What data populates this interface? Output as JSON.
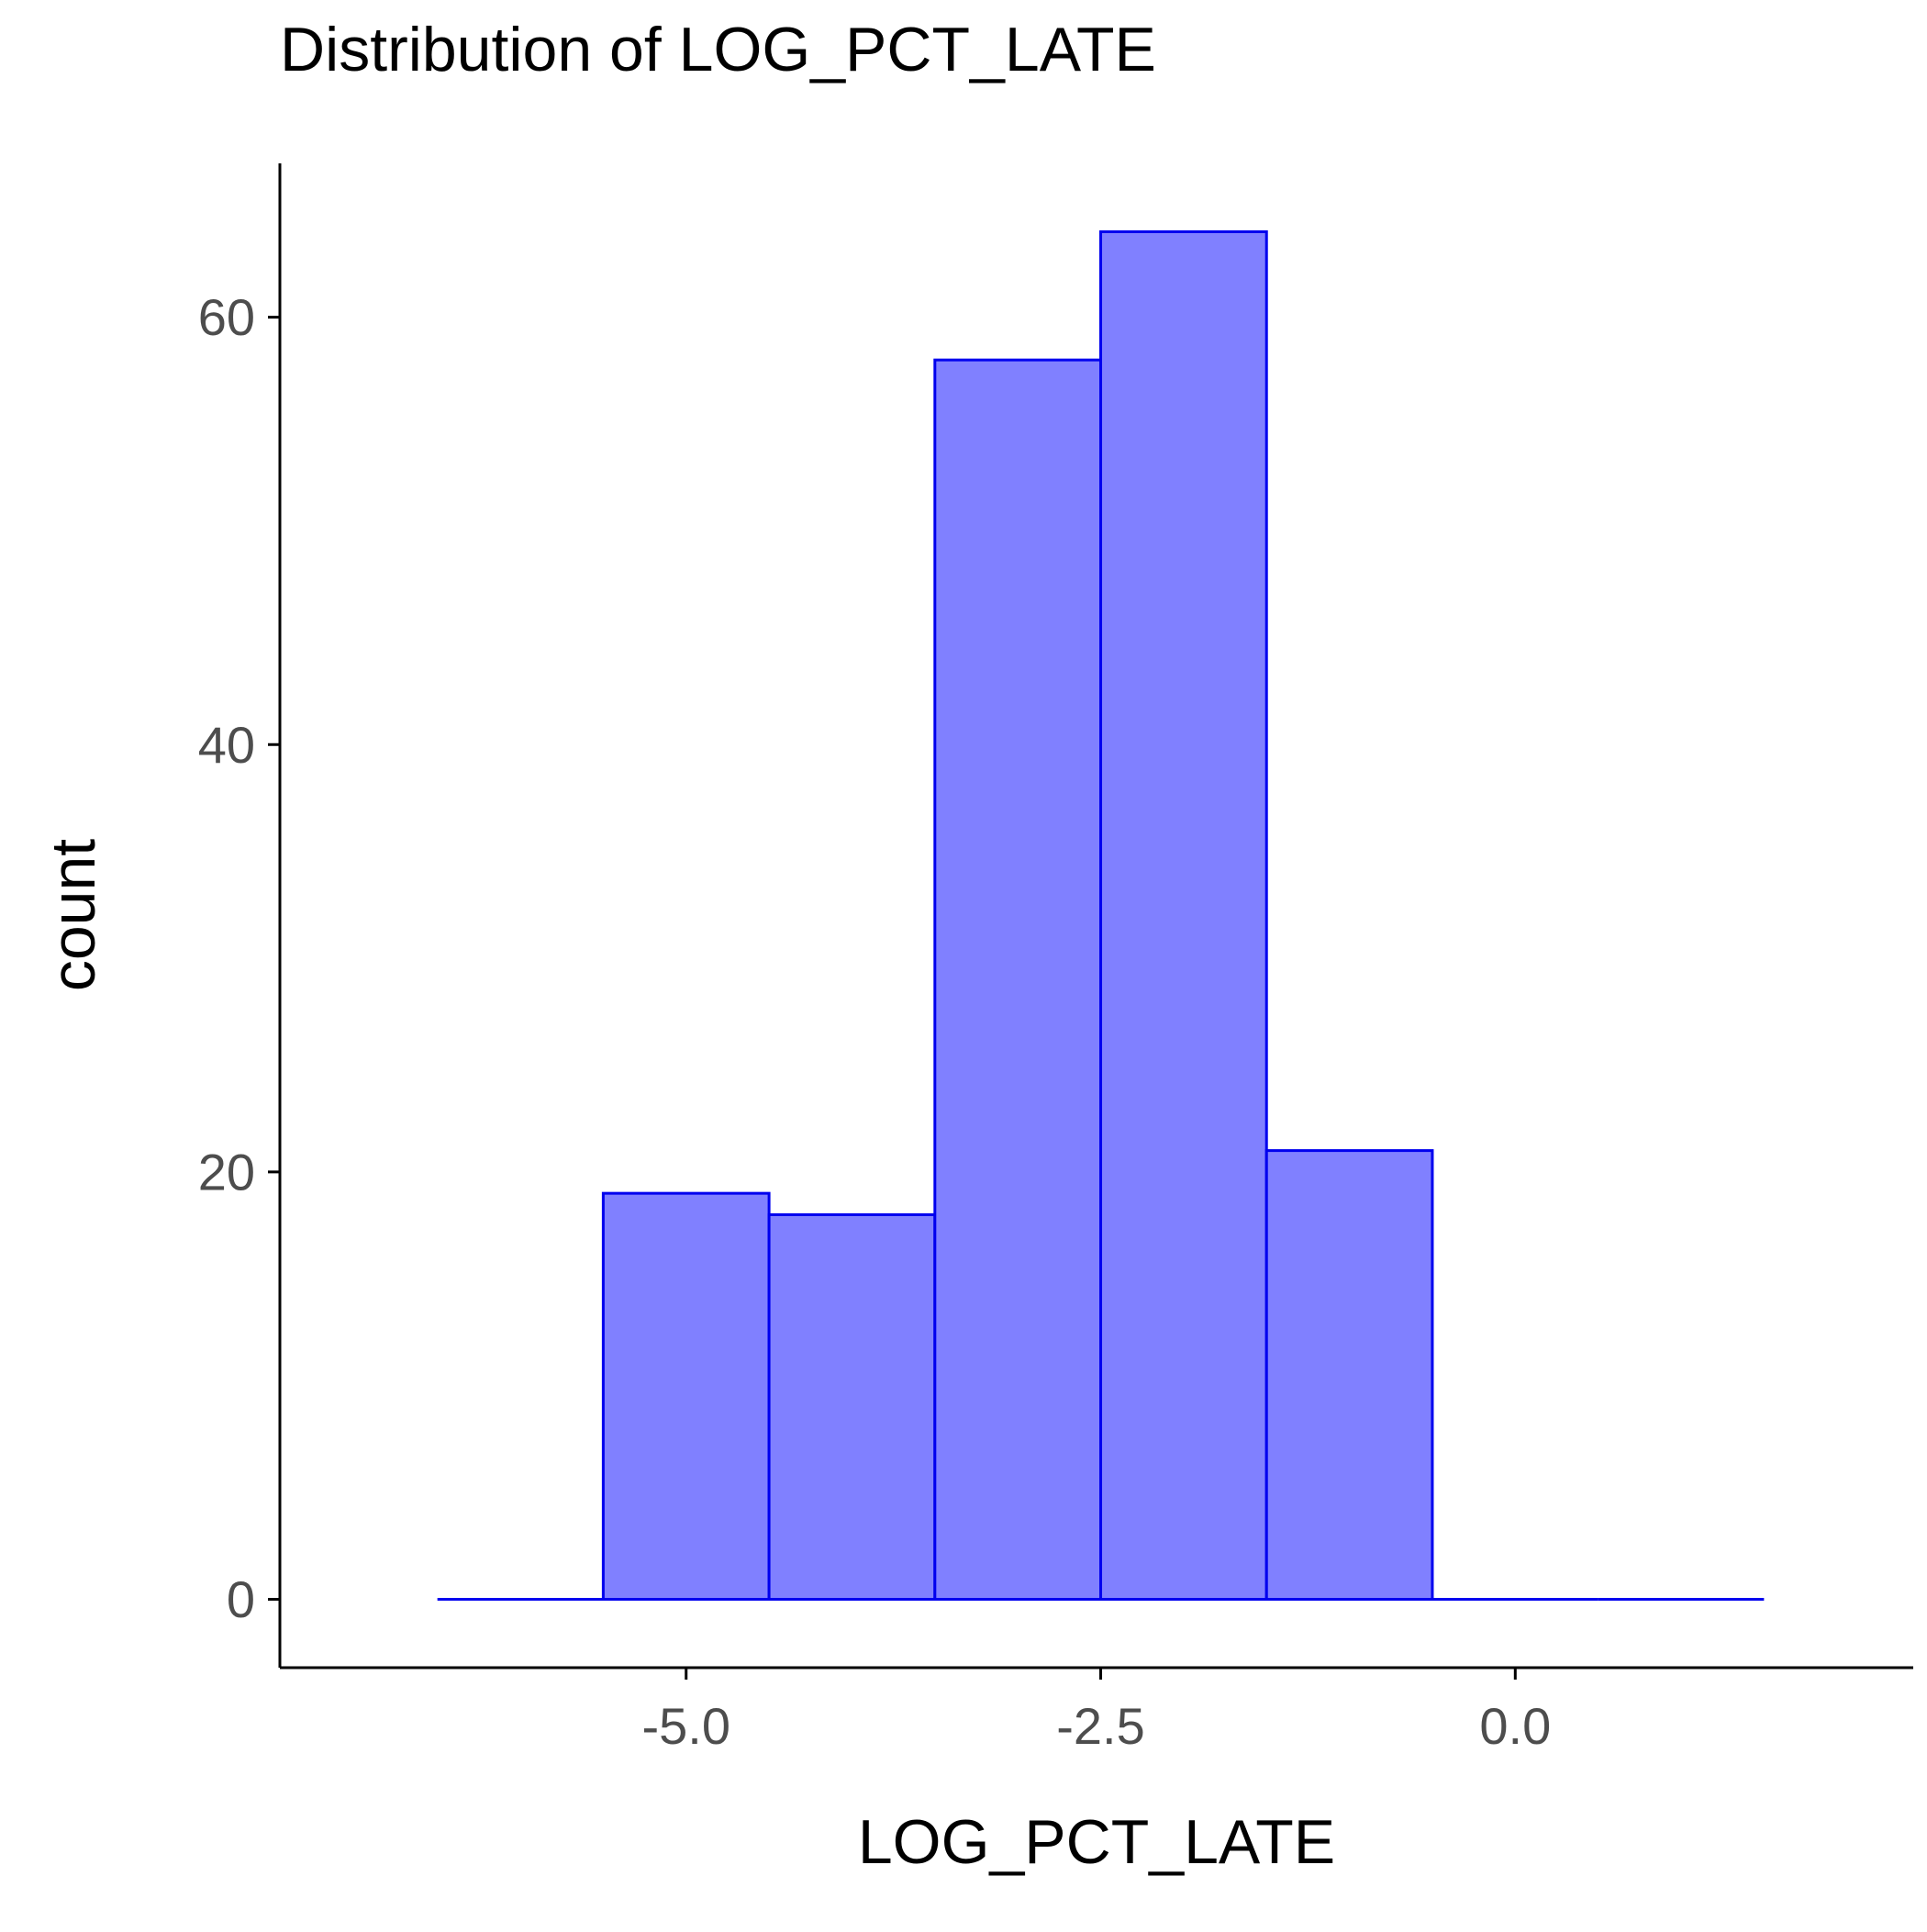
{
  "chart_data": {
    "type": "bar",
    "title": "Distribution of LOG_PCT_LATE",
    "xlabel": "LOG_PCT_LATE",
    "ylabel": "count",
    "bins": [
      {
        "x_start": -6.5,
        "x_end": -5.5,
        "count": 0
      },
      {
        "x_start": -5.5,
        "x_end": -4.5,
        "count": 19
      },
      {
        "x_start": -4.5,
        "x_end": -3.5,
        "count": 18
      },
      {
        "x_start": -3.5,
        "x_end": -2.5,
        "count": 58
      },
      {
        "x_start": -2.5,
        "x_end": -1.5,
        "count": 64
      },
      {
        "x_start": -1.5,
        "x_end": -0.5,
        "count": 21
      },
      {
        "x_start": -0.5,
        "x_end": 0.5,
        "count": 0
      },
      {
        "x_start": 0.5,
        "x_end": 1.5,
        "count": 0
      }
    ],
    "x_ticks": [
      -5.0,
      -2.5,
      0.0
    ],
    "x_tick_labels": [
      "-5.0",
      "-2.5",
      "0.0"
    ],
    "y_ticks": [
      0,
      20,
      40,
      60
    ],
    "y_tick_labels": [
      "0",
      "20",
      "40",
      "60"
    ],
    "xlim": [
      -7.45,
      2.4
    ],
    "ylim": [
      -3.2,
      67.2
    ],
    "grid": false,
    "legend": "none",
    "colors": {
      "bar_fill": "#8080ff",
      "bar_stroke": "#0000ee",
      "axis": "#000000",
      "tick_text": "#4d4d4d"
    }
  }
}
